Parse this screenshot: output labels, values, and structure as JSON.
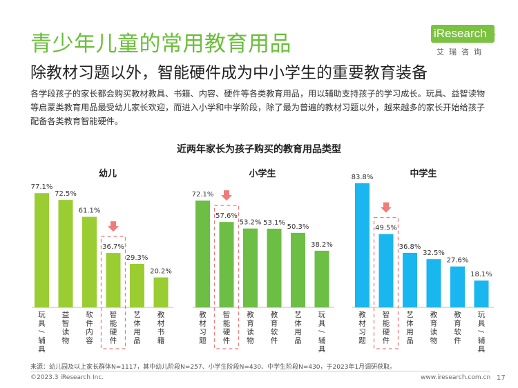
{
  "header": {
    "title": "青少年儿童的常用教育用品",
    "subtitle": "除教材习题以外，智能硬件成为中小学生的重要教育装备",
    "description": "各学段孩子的家长都会购买教材教具、书籍、内容、硬件等各类教育用品，用以辅助支持孩子的学习成长。玩具、益智读物等启蒙类教育用品最受幼儿家长欢迎，而进入小学和中学阶段，除了最为普遍的教材习题以外，越来越多的家长开始给孩子配备各类教育智能硬件。"
  },
  "logo": {
    "text": "iResearch",
    "subtext": "艾瑞咨询"
  },
  "colors": {
    "kindergarten": "#9acd32",
    "primary": "#6cbe45",
    "middle": "#1ab6ef",
    "highlight": "#f07b7b",
    "title": "#6abf3a"
  },
  "chart_data": {
    "type": "bar",
    "title": "近两年家长为孩子购买的教育用品类型",
    "unit": "%",
    "ylim": [
      0,
      100
    ],
    "panels": [
      {
        "name": "幼儿",
        "color": "#9acd32",
        "categories": [
          "玩具/辅具",
          "益智读物",
          "软件内容",
          "智能硬件",
          "艺体用品",
          "教材书籍"
        ],
        "values": [
          77.1,
          72.5,
          61.1,
          36.7,
          29.3,
          20.2
        ],
        "highlight_index": 3
      },
      {
        "name": "小学生",
        "color": "#6cbe45",
        "categories": [
          "教材习题",
          "智能硬件",
          "教育读物",
          "教育软件",
          "艺体用品",
          "玩具/辅具"
        ],
        "values": [
          72.1,
          57.6,
          53.2,
          53.1,
          50.3,
          38.2
        ],
        "highlight_index": 1
      },
      {
        "name": "中学生",
        "color": "#1ab6ef",
        "categories": [
          "教材习题",
          "智能硬件",
          "艺体用品",
          "教育读物",
          "教育软件",
          "玩具/辅具"
        ],
        "values": [
          83.8,
          49.5,
          36.8,
          32.5,
          27.6,
          18.1
        ],
        "highlight_index": 1
      }
    ]
  },
  "footer": {
    "source": "来源：幼儿园及以上家长群体N=1117，其中幼儿阶段N=257、小学生阶段N=430、中学生阶段N=430，于2023年1月调研获取。",
    "copyright": "©2023.3 iResearch Inc.",
    "site": "www.iresearch.com.cn",
    "page": "17"
  }
}
